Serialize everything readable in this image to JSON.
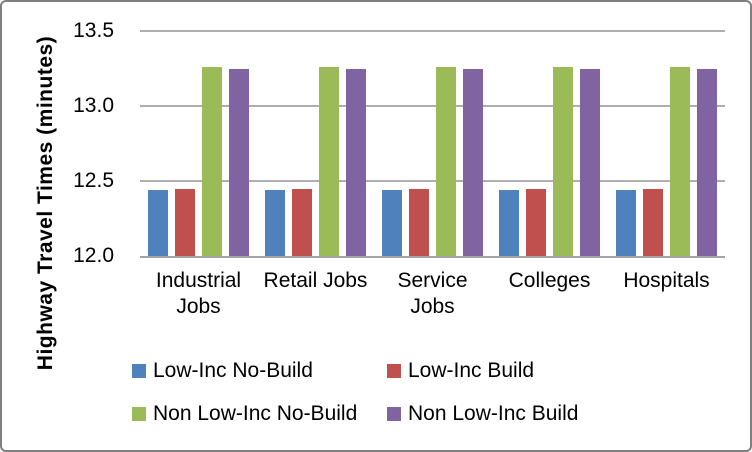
{
  "chart_data": {
    "type": "bar",
    "title": "",
    "xlabel": "",
    "ylabel": "Highway Travel Times (minutes)",
    "ylim": [
      12.0,
      13.5
    ],
    "yticks": [
      12.0,
      12.5,
      13.0,
      13.5
    ],
    "grid": true,
    "legend_position": "bottom",
    "categories": [
      "Industrial Jobs",
      "Retail Jobs",
      "Service Jobs",
      "Colleges",
      "Hospitals"
    ],
    "categories_display": [
      "Industrial\nJobs",
      "Retail Jobs",
      "Service\nJobs",
      "Colleges",
      "Hospitals"
    ],
    "series": [
      {
        "name": "Low-Inc No-Build",
        "color": "#4F81BD",
        "values": [
          12.44,
          12.44,
          12.44,
          12.44,
          12.44
        ]
      },
      {
        "name": "Low-Inc Build",
        "color": "#C0504D",
        "values": [
          12.45,
          12.45,
          12.45,
          12.45,
          12.45
        ]
      },
      {
        "name": "Non Low-Inc No-Build",
        "color": "#9BBB59",
        "values": [
          13.26,
          13.26,
          13.26,
          13.26,
          13.26
        ]
      },
      {
        "name": "Non Low-Inc Build",
        "color": "#8064A2",
        "values": [
          13.25,
          13.25,
          13.25,
          13.25,
          13.25
        ]
      }
    ],
    "colors": {
      "gridline": "#AEAEAE",
      "axis_line": "#A3A3A3",
      "frame_border": "#7F7F7F",
      "text": "#000000"
    }
  }
}
